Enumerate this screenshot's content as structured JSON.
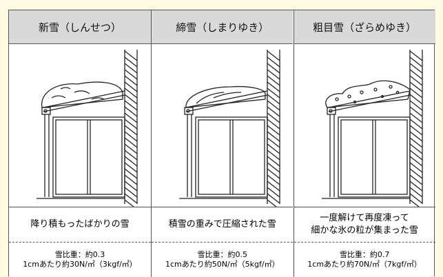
{
  "table": {
    "columns": [
      {
        "title": "新雪（しんせつ）",
        "description": [
          "降り積もったばかりの雪"
        ],
        "gravity": "雪比重：約0.3",
        "load": "1cmあたり約30N/㎡（3kgf/㎡）"
      },
      {
        "title": "締雪（しまりゆき）",
        "description": [
          "積雪の重みで圧縮された雪"
        ],
        "gravity": "雪比重：約0.5",
        "load": "1cmあたり約50N/㎡（5kgf/㎡）"
      },
      {
        "title": "粗目雪（ざらめゆき）",
        "description": [
          "一度解けて再度凍って",
          "細かな氷の粒が集まった雪"
        ],
        "gravity": "雪比重：約0.7",
        "load": "1cmあたり約70N/㎡（7kgf/㎡）"
      }
    ]
  }
}
